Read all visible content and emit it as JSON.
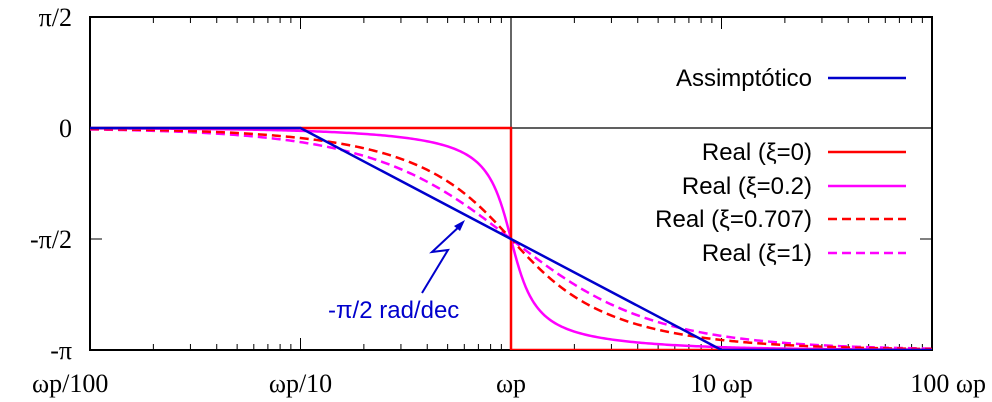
{
  "chart_data": {
    "type": "line",
    "x_scale": "log",
    "xlim": [
      0.01,
      100
    ],
    "ylim": [
      -3.14159,
      1.5708
    ],
    "x_ticks": [
      {
        "x": 0.01,
        "label": "ωp/100"
      },
      {
        "x": 0.1,
        "label": "ωp/10"
      },
      {
        "x": 1,
        "label": "ωp"
      },
      {
        "x": 10,
        "label": "10 ωp"
      },
      {
        "x": 100,
        "label": "100 ωp"
      }
    ],
    "y_ticks": [
      {
        "y": 1.5708,
        "label": "π/2"
      },
      {
        "y": 0,
        "label": "0"
      },
      {
        "y": -1.5708,
        "label": "-π/2"
      },
      {
        "y": -3.14159,
        "label": "-π"
      }
    ],
    "legend_position": "right",
    "reference_lines": {
      "x": 1,
      "y": 0
    },
    "series": [
      {
        "name": "Assimptótico",
        "color": "#0000cc",
        "dash": "solid",
        "x": [
          0.01,
          0.1,
          10,
          100
        ],
        "y": [
          0,
          0,
          -3.14159,
          -3.14159
        ]
      },
      {
        "name": "Real (ξ=0)",
        "color": "#ff0000",
        "dash": "solid",
        "x": [
          0.01,
          1,
          1,
          100
        ],
        "y": [
          0,
          0,
          -3.14159,
          -3.14159
        ]
      },
      {
        "name": "Real (ξ=0.2)",
        "color": "#ff00ff",
        "dash": "solid",
        "zeta": 0.2
      },
      {
        "name": "Real (ξ=0.707)",
        "color": "#ff0000",
        "dash": "dashed",
        "zeta": 0.707
      },
      {
        "name": "Real (ξ=1)",
        "color": "#ff00ff",
        "dash": "dashed",
        "zeta": 1
      }
    ],
    "annotations": [
      {
        "text": "-π/2 rad/dec",
        "color": "#0000cc"
      }
    ]
  }
}
